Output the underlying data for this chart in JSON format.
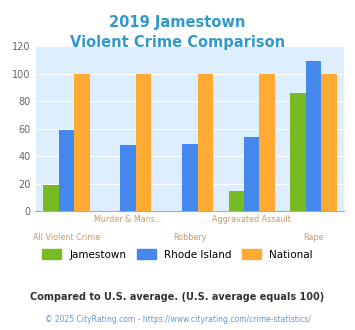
{
  "title_line1": "2019 Jamestown",
  "title_line2": "Violent Crime Comparison",
  "categories": [
    "All Violent Crime",
    "Murder & Mans...",
    "Robbery",
    "Aggravated Assault",
    "Rape"
  ],
  "label_top": [
    "",
    "Murder & Mans...",
    "",
    "Aggravated Assault",
    ""
  ],
  "label_bottom": [
    "All Violent Crime",
    "",
    "Robbery",
    "",
    "Rape"
  ],
  "jamestown": [
    19,
    0,
    0,
    15,
    86
  ],
  "rhode_island": [
    59,
    48,
    49,
    54,
    109
  ],
  "national": [
    100,
    100,
    100,
    100,
    100
  ],
  "jamestown_color": "#77bb22",
  "rhode_island_color": "#4488ee",
  "national_color": "#ffaa33",
  "title_color": "#3399cc",
  "plot_bg_color": "#ddeeff",
  "fig_bg_color": "#ffffff",
  "ylim": [
    0,
    120
  ],
  "yticks": [
    0,
    20,
    40,
    60,
    80,
    100,
    120
  ],
  "xlabel_color": "#cc9966",
  "legend_labels": [
    "Jamestown",
    "Rhode Island",
    "National"
  ],
  "footnote1": "Compared to U.S. average. (U.S. average equals 100)",
  "footnote2": "© 2025 CityRating.com - https://www.cityrating.com/crime-statistics/",
  "footnote1_color": "#333333",
  "footnote2_color": "#6699cc"
}
